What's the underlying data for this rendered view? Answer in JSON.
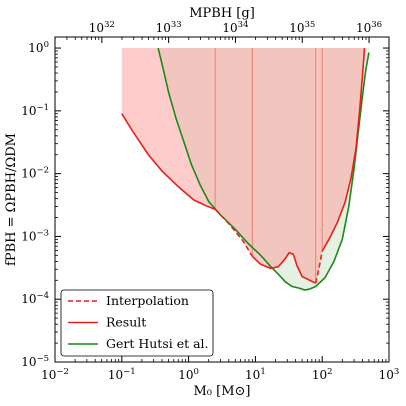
{
  "chart_data": {
    "type": "line",
    "xlabel": "M₀ [M⊙]",
    "ylabel": "fPBH = ΩPBH/ΩDM",
    "top_xlabel": "MPBH [g]",
    "xscale": "log",
    "yscale": "log",
    "xlim": [
      0.01,
      1000
    ],
    "ylim": [
      1e-05,
      1.5
    ],
    "x_ticks": [
      {
        "value": 0.01,
        "base": "10",
        "exp": "−2"
      },
      {
        "value": 0.1,
        "base": "10",
        "exp": "−1"
      },
      {
        "value": 1,
        "base": "10",
        "exp": "0"
      },
      {
        "value": 10,
        "base": "10",
        "exp": "1"
      },
      {
        "value": 100,
        "base": "10",
        "exp": "2"
      },
      {
        "value": 1000,
        "base": "10",
        "exp": "3"
      }
    ],
    "y_ticks": [
      {
        "value": 1,
        "base": "10",
        "exp": "0"
      },
      {
        "value": 0.1,
        "base": "10",
        "exp": "−1"
      },
      {
        "value": 0.01,
        "base": "10",
        "exp": "−2"
      },
      {
        "value": 0.001,
        "base": "10",
        "exp": "−3"
      },
      {
        "value": 0.0001,
        "base": "10",
        "exp": "−4"
      },
      {
        "value": 1e-05,
        "base": "10",
        "exp": "−5"
      }
    ],
    "top_ticks": [
      {
        "value_g": 1e+32,
        "base": "10",
        "exp": "32"
      },
      {
        "value_g": 1e+33,
        "base": "10",
        "exp": "33"
      },
      {
        "value_g": 1e+34,
        "base": "10",
        "exp": "34"
      },
      {
        "value_g": 1e+35,
        "base": "10",
        "exp": "35"
      },
      {
        "value_g": 1e+36,
        "base": "10",
        "exp": "36"
      }
    ],
    "series": [
      {
        "name": "Interpolation",
        "color": "#e8201c",
        "style": "dashed",
        "segments": [
          [
            [
              2.5,
              0.0027
            ],
            [
              4.0,
              0.0016
            ],
            [
              6.5,
              0.00085
            ],
            [
              9.0,
              0.00048
            ]
          ],
          [
            [
              80,
              0.00018
            ],
            [
              90,
              0.00032
            ],
            [
              100,
              0.00058
            ]
          ]
        ]
      },
      {
        "name": "Result",
        "color": "#e8201c",
        "style": "solid",
        "fill": "#ff9a9a",
        "segments": [
          [
            [
              0.1,
              0.09
            ],
            [
              0.15,
              0.045
            ],
            [
              0.25,
              0.02
            ],
            [
              0.4,
              0.011
            ],
            [
              0.7,
              0.0062
            ],
            [
              1.2,
              0.0038
            ],
            [
              1.8,
              0.0031
            ],
            [
              2.5,
              0.0027
            ]
          ],
          [
            [
              9.0,
              0.00048
            ],
            [
              12,
              0.00036
            ],
            [
              17,
              0.00031
            ],
            [
              22,
              0.00033
            ],
            [
              27,
              0.00042
            ],
            [
              32,
              0.00055
            ],
            [
              37,
              0.00052
            ],
            [
              42,
              0.00034
            ],
            [
              50,
              0.00023
            ],
            [
              65,
              0.0002
            ],
            [
              80,
              0.00018
            ]
          ],
          [
            [
              100,
              0.00058
            ],
            [
              130,
              0.00095
            ],
            [
              170,
              0.0017
            ],
            [
              220,
              0.0035
            ],
            [
              270,
              0.0085
            ],
            [
              320,
              0.025
            ],
            [
              360,
              0.09
            ],
            [
              400,
              0.35
            ],
            [
              430,
              1.0
            ]
          ]
        ],
        "vlines": [
          2.5,
          9.0,
          80,
          100
        ]
      },
      {
        "name": "Gert Hutsi et al.",
        "color": "#1a8a1a",
        "style": "solid",
        "fill": "#cfe8cc",
        "segments": [
          [
            [
              0.35,
              1.0
            ],
            [
              0.42,
              0.45
            ],
            [
              0.5,
              0.2
            ],
            [
              0.65,
              0.075
            ],
            [
              0.85,
              0.032
            ],
            [
              1.1,
              0.014
            ],
            [
              1.5,
              0.0065
            ],
            [
              2.0,
              0.0036
            ],
            [
              3.0,
              0.0022
            ],
            [
              5,
              0.0013
            ],
            [
              8,
              0.00075
            ],
            [
              12,
              0.0005
            ],
            [
              17,
              0.00033
            ],
            [
              22,
              0.00025
            ],
            [
              28,
              0.00019
            ],
            [
              35,
              0.00016
            ],
            [
              45,
              0.00015
            ],
            [
              55,
              0.00014
            ],
            [
              65,
              0.000145
            ],
            [
              80,
              0.00016
            ],
            [
              110,
              0.00022
            ],
            [
              150,
              0.0004
            ],
            [
              200,
              0.0009
            ],
            [
              250,
              0.003
            ],
            [
              300,
              0.012
            ],
            [
              350,
              0.05
            ],
            [
              400,
              0.17
            ],
            [
              450,
              0.45
            ],
            [
              500,
              0.85
            ]
          ]
        ]
      }
    ],
    "legend": {
      "position": "lower-left",
      "entries": [
        {
          "label": "Interpolation",
          "color": "#e8201c",
          "style": "dashed"
        },
        {
          "label": "Result",
          "color": "#e8201c",
          "style": "solid"
        },
        {
          "label": "Gert Hutsi et al.",
          "color": "#1a8a1a",
          "style": "solid"
        }
      ]
    }
  }
}
